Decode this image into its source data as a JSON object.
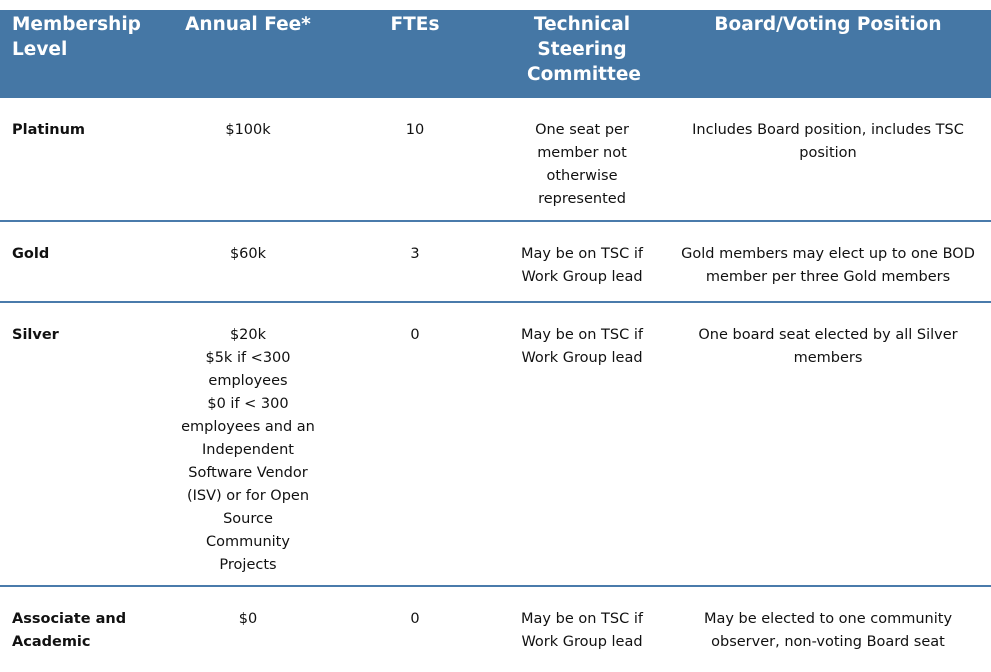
{
  "header": {
    "level": "Membership Level",
    "fee": "Annual Fee*",
    "ftes": "FTEs",
    "tsc": "Technical Steering Committee",
    "board": "Board/Voting Position"
  },
  "rows": [
    {
      "level": "Platinum",
      "fee": [
        "$100k"
      ],
      "ftes": "10",
      "tsc": "One seat per member not otherwise represented",
      "board": "Includes Board position, includes TSC position"
    },
    {
      "level": "Gold",
      "fee": [
        "$60k"
      ],
      "ftes": "3",
      "tsc": "May be on TSC if Work Group lead",
      "board": "Gold members may elect up to one BOD member per three Gold members"
    },
    {
      "level": "Silver",
      "fee": [
        "$20k",
        "$5k if <300",
        "employees",
        "$0 if < 300",
        "employees and an",
        "Independent",
        "Software Vendor",
        "(ISV) or for Open",
        "Source",
        "Community",
        "Projects"
      ],
      "ftes": "0",
      "tsc": "May be on TSC if Work Group lead",
      "board": "One board seat elected by all Silver members"
    },
    {
      "level": "Associate and Academic",
      "fee": [
        "$0"
      ],
      "ftes": "0",
      "tsc": "May be on TSC if Work Group lead",
      "board": "May be elected to one community observer, non-voting Board seat"
    }
  ],
  "colors": {
    "header_bg": "#4577a5",
    "divider": "#4a7bab"
  }
}
